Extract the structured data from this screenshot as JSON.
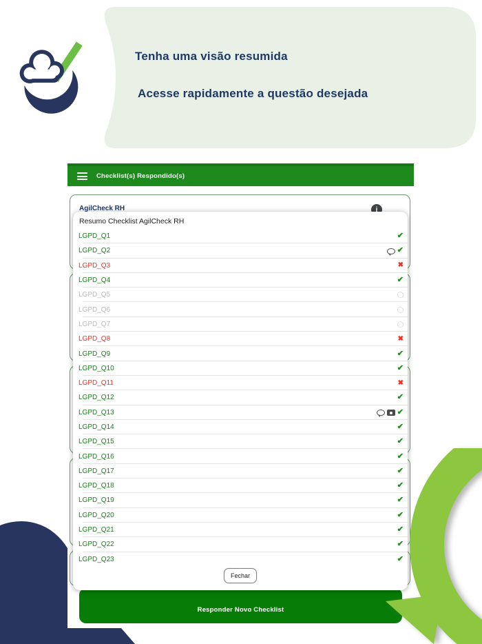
{
  "hero": {
    "title": "Tenha uma visão resumida",
    "subtitle": "Acesse rapidamente a questão desejada"
  },
  "app": {
    "header": {
      "title": "Checklist(s) Respondido(s)",
      "menu_icon": "hamburger-menu"
    },
    "background_card": {
      "title": "AgilCheck RH",
      "info_icon": "info"
    },
    "modal": {
      "title": "Resumo Checklist AgilCheck RH",
      "close_button": "Fechar",
      "rows": [
        {
          "label": "LGPD_Q1",
          "status": "ok",
          "icons": [
            "check"
          ]
        },
        {
          "label": "LGPD_Q2",
          "status": "ok",
          "icons": [
            "comment",
            "check"
          ]
        },
        {
          "label": "LGPD_Q3",
          "status": "fail",
          "icons": [
            "x"
          ]
        },
        {
          "label": "LGPD_Q4",
          "status": "ok",
          "icons": [
            "check"
          ]
        },
        {
          "label": "LGPD_Q5",
          "status": "pending",
          "icons": [
            "spinner"
          ]
        },
        {
          "label": "LGPD_Q6",
          "status": "pending",
          "icons": [
            "spinner"
          ]
        },
        {
          "label": "LGPD_Q7",
          "status": "pending",
          "icons": [
            "spinner"
          ]
        },
        {
          "label": "LGPD_Q8",
          "status": "fail",
          "icons": [
            "x"
          ]
        },
        {
          "label": "LGPD_Q9",
          "status": "ok",
          "icons": [
            "check"
          ]
        },
        {
          "label": "LGPD_Q10",
          "status": "ok",
          "icons": [
            "check"
          ]
        },
        {
          "label": "LGPD_Q11",
          "status": "fail",
          "icons": [
            "x"
          ]
        },
        {
          "label": "LGPD_Q12",
          "status": "ok",
          "icons": [
            "check"
          ]
        },
        {
          "label": "LGPD_Q13",
          "status": "ok",
          "icons": [
            "comment",
            "camera",
            "check"
          ]
        },
        {
          "label": "LGPD_Q14",
          "status": "ok",
          "icons": [
            "check"
          ]
        },
        {
          "label": "LGPD_Q15",
          "status": "ok",
          "icons": [
            "check"
          ]
        },
        {
          "label": "LGPD_Q16",
          "status": "ok",
          "icons": [
            "check"
          ]
        },
        {
          "label": "LGPD_Q17",
          "status": "ok",
          "icons": [
            "check"
          ]
        },
        {
          "label": "LGPD_Q18",
          "status": "ok",
          "icons": [
            "check"
          ]
        },
        {
          "label": "LGPD_Q19",
          "status": "ok",
          "icons": [
            "check"
          ]
        },
        {
          "label": "LGPD_Q20",
          "status": "ok",
          "icons": [
            "check"
          ]
        },
        {
          "label": "LGPD_Q21",
          "status": "ok",
          "icons": [
            "check"
          ]
        },
        {
          "label": "LGPD_Q22",
          "status": "ok",
          "icons": [
            "check"
          ]
        },
        {
          "label": "LGPD_Q23",
          "status": "ok",
          "icons": [
            "check"
          ]
        }
      ]
    },
    "primary_button": {
      "label": "Responder Novo Checklist"
    }
  },
  "colors": {
    "header_green": "#1e8a1e",
    "button_green": "#077d07",
    "item_green": "#1e7d1e",
    "item_red": "#ef3124",
    "item_pending_gray": "#b9b9b9",
    "check_green": "#1f8b1f",
    "hero_bg": "#e9f1e7",
    "navy": "#1f3864",
    "logo_navy": "#27355f",
    "accent_light_green": "#8dc63f"
  }
}
